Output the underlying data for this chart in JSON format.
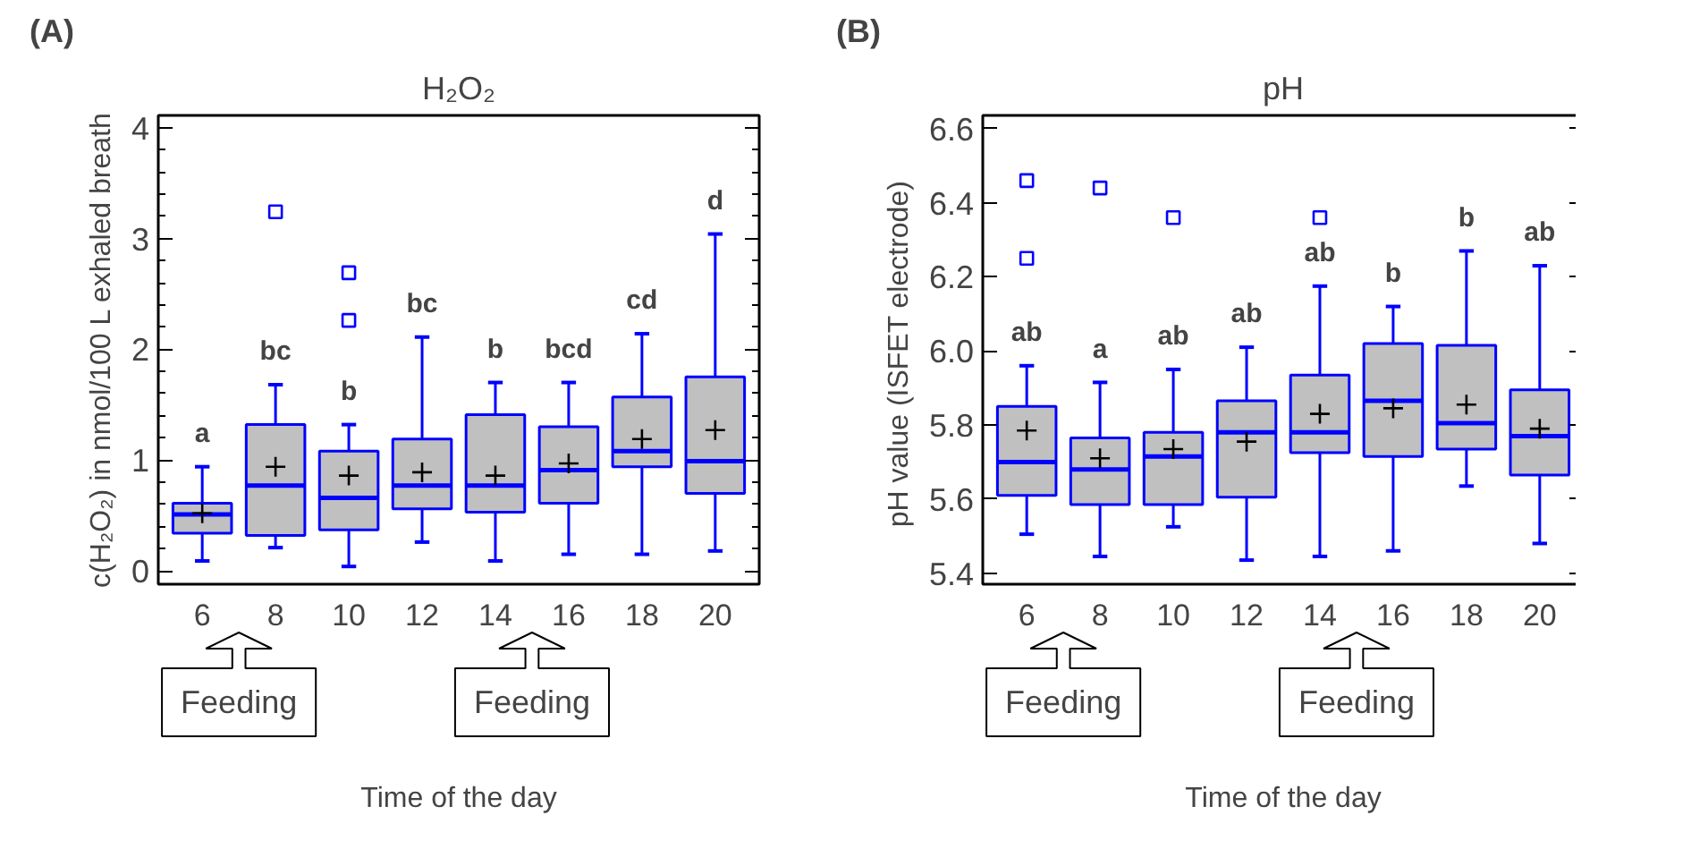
{
  "chart_data": [
    {
      "type": "box",
      "title": "H₂O₂",
      "xlabel": "Time of the day",
      "ylabel": "c(H₂O₂) in nmol/100 L exhaled breath",
      "color": "#0000ff",
      "categories": [
        "6",
        "8",
        "10",
        "12",
        "14",
        "16",
        "18",
        "20"
      ],
      "boxes": [
        {
          "low": 0.09,
          "q1": 0.34,
          "median": 0.51,
          "q3": 0.61,
          "high": 0.94,
          "mean": 0.52
        },
        {
          "low": 0.21,
          "q1": 0.32,
          "median": 0.77,
          "q3": 1.32,
          "high": 1.68,
          "mean": 0.94,
          "outliers": [
            3.24
          ]
        },
        {
          "low": 0.04,
          "q1": 0.37,
          "median": 0.66,
          "q3": 1.08,
          "high": 1.32,
          "mean": 0.86,
          "outliers": [
            2.69,
            2.26
          ]
        },
        {
          "low": 0.26,
          "q1": 0.56,
          "median": 0.77,
          "q3": 1.19,
          "high": 2.11,
          "mean": 0.89
        },
        {
          "low": 0.09,
          "q1": 0.53,
          "median": 0.77,
          "q3": 1.41,
          "high": 1.7,
          "mean": 0.86
        },
        {
          "low": 0.15,
          "q1": 0.61,
          "median": 0.91,
          "q3": 1.3,
          "high": 1.7,
          "mean": 0.97
        },
        {
          "low": 0.15,
          "q1": 0.94,
          "median": 1.08,
          "q3": 1.57,
          "high": 2.14,
          "mean": 1.19
        },
        {
          "low": 0.18,
          "q1": 0.7,
          "median": 0.99,
          "q3": 1.75,
          "high": 3.04,
          "mean": 1.27
        }
      ],
      "ylim": [
        -0.12,
        4.11
      ],
      "yticks": [
        0,
        {
          "value": 0.2,
          "label": null
        },
        {
          "value": 0.4,
          "label": null
        },
        {
          "value": 0.6,
          "label": null
        },
        {
          "value": 0.8,
          "label": null
        },
        1,
        {
          "value": 1.2,
          "label": null
        },
        {
          "value": 1.4,
          "label": null
        },
        {
          "value": 1.6,
          "label": null
        },
        {
          "value": 1.8,
          "label": null
        },
        2,
        {
          "value": 2.2,
          "label": null
        },
        {
          "value": 2.4,
          "label": null
        },
        {
          "value": 2.6,
          "label": null
        },
        {
          "value": 2.8,
          "label": null
        },
        3,
        {
          "value": 3.2,
          "label": null
        },
        {
          "value": 3.4,
          "label": null
        },
        {
          "value": 3.6,
          "label": null
        },
        {
          "value": 3.8,
          "label": null
        },
        4
      ],
      "grid": false,
      "annotations": [
        "(A)",
        "Feeding",
        "Feeding",
        "a",
        "bc",
        "b",
        "bc",
        "b",
        "bcd",
        "cd",
        "d"
      ]
    },
    {
      "type": "box",
      "title": "pH",
      "xlabel": "Time of the day",
      "ylabel": "pH  value (ISFET electrode)",
      "color": "#0000ff",
      "categories": [
        "6",
        "8",
        "10",
        "12",
        "14",
        "16",
        "18",
        "20"
      ],
      "boxes": [
        {
          "low": 5.505,
          "q1": 5.61,
          "median": 5.7,
          "q3": 5.85,
          "high": 5.96,
          "mean": 5.785,
          "outliers": [
            6.46,
            6.25
          ]
        },
        {
          "low": 5.445,
          "q1": 5.585,
          "median": 5.68,
          "q3": 5.765,
          "high": 5.915,
          "mean": 5.71,
          "outliers": [
            6.44
          ]
        },
        {
          "low": 5.525,
          "q1": 5.585,
          "median": 5.715,
          "q3": 5.78,
          "high": 5.95,
          "mean": 5.735,
          "outliers": [
            6.36
          ]
        },
        {
          "low": 5.435,
          "q1": 5.605,
          "median": 5.78,
          "q3": 5.865,
          "high": 6.01,
          "mean": 5.755
        },
        {
          "low": 5.445,
          "q1": 5.725,
          "median": 5.78,
          "q3": 5.935,
          "high": 6.175,
          "mean": 5.83,
          "outliers": [
            6.36
          ]
        },
        {
          "low": 5.46,
          "q1": 5.715,
          "median": 5.865,
          "q3": 6.02,
          "high": 6.12,
          "mean": 5.845
        },
        {
          "low": 5.635,
          "q1": 5.735,
          "median": 5.805,
          "q3": 6.015,
          "high": 6.27,
          "mean": 5.855
        },
        {
          "low": 5.48,
          "q1": 5.665,
          "median": 5.77,
          "q3": 5.895,
          "high": 6.23,
          "mean": 5.79
        }
      ],
      "ylim": [
        5.37,
        6.636
      ],
      "yticks": [
        {
          "value": 5.4,
          "label": "5.4"
        },
        {
          "value": 5.6,
          "label": "5.6"
        },
        {
          "value": 5.8,
          "label": "5.8"
        },
        {
          "value": 6.0,
          "label": "6.0"
        },
        {
          "value": 6.2,
          "label": "6.2"
        },
        {
          "value": 6.4,
          "label": "6.4"
        },
        {
          "value": 6.6,
          "label": "6.6"
        }
      ],
      "grid": false,
      "annotations": [
        "(B)",
        "Feeding",
        "Feeding",
        "ab",
        "a",
        "ab",
        "ab",
        "ab",
        "b",
        "b",
        "ab"
      ]
    }
  ]
}
